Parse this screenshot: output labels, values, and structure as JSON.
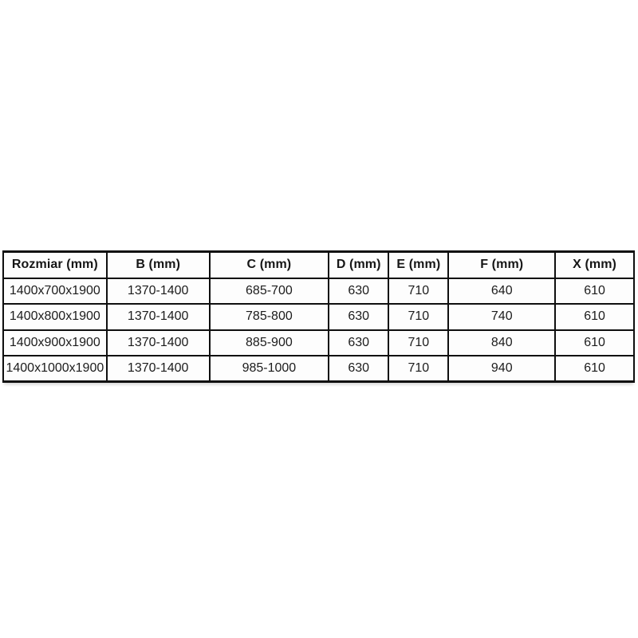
{
  "page": {
    "background_color": "#ffffff"
  },
  "table": {
    "name": "shower-enclosure-dimensions",
    "border_color": "#0f0f0f",
    "cell_background": "#fdfdfd",
    "text_color": "#1c1c1c",
    "columns": [
      "Rozmiar (mm)",
      "B (mm)",
      "C (mm)",
      "D (mm)",
      "E (mm)",
      "F (mm)",
      "X (mm)"
    ],
    "rows": [
      [
        "1400x700x1900",
        "1370-1400",
        "685-700",
        "630",
        "710",
        "640",
        "610"
      ],
      [
        "1400x800x1900",
        "1370-1400",
        "785-800",
        "630",
        "710",
        "740",
        "610"
      ],
      [
        "1400x900x1900",
        "1370-1400",
        "885-900",
        "630",
        "710",
        "840",
        "610"
      ],
      [
        "1400x1000x1900",
        "1370-1400",
        "985-1000",
        "630",
        "710",
        "940",
        "610"
      ]
    ]
  }
}
